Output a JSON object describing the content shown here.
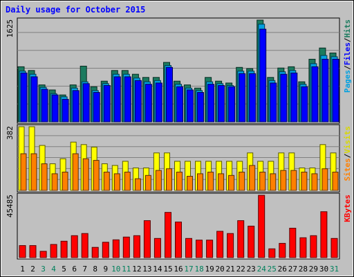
{
  "chart_data": {
    "type": "bar",
    "title": "Daily usage for October 2015",
    "categories": [
      "1",
      "2",
      "3",
      "4",
      "5",
      "6",
      "7",
      "8",
      "9",
      "10",
      "11",
      "12",
      "13",
      "14",
      "15",
      "16",
      "17",
      "18",
      "19",
      "20",
      "21",
      "22",
      "23",
      "24",
      "25",
      "26",
      "27",
      "28",
      "29",
      "30",
      "31"
    ],
    "weekend_days": [
      "3",
      "4",
      "10",
      "11",
      "17",
      "18",
      "24",
      "25",
      "31"
    ],
    "panels": [
      {
        "id": "traffic",
        "ymax_label": "1625",
        "ymax": 1625,
        "legend": [
          "Pages",
          "/",
          "Files",
          "/",
          "Hits"
        ],
        "series": [
          {
            "name": "Hits",
            "color": "#1b7b5f",
            "values": [
              880,
              820,
              590,
              510,
              430,
              590,
              890,
              560,
              650,
              820,
              820,
              760,
              710,
              710,
              950,
              650,
              590,
              540,
              710,
              650,
              620,
              870,
              850,
              1625,
              710,
              860,
              880,
              640,
              1000,
              1180,
              1100
            ]
          },
          {
            "name": "Files",
            "color": "#00a0e0",
            "values": [
              810,
              760,
              550,
              450,
              400,
              540,
              640,
              500,
              610,
              760,
              760,
              700,
              640,
              660,
              900,
              600,
              540,
              500,
              640,
              610,
              580,
              810,
              810,
              1560,
              660,
              800,
              820,
              600,
              930,
              1060,
              1040
            ]
          },
          {
            "name": "Pages",
            "color": "#0000ff",
            "values": [
              780,
              720,
              520,
              430,
              360,
              500,
              610,
              470,
              580,
              720,
              720,
              660,
              600,
              620,
              870,
              560,
              510,
              470,
              600,
              580,
              560,
              770,
              770,
              1480,
              620,
              760,
              780,
              560,
              880,
              1000,
              1000
            ]
          }
        ]
      },
      {
        "id": "visitors",
        "ymax_label": "382",
        "ymax": 382,
        "legend": [
          "Sites",
          "/",
          "Visits"
        ],
        "series": [
          {
            "name": "Visits",
            "color": "#ffff00",
            "values": [
              382,
              382,
              270,
              160,
              190,
              290,
              275,
              260,
              160,
              150,
              175,
              135,
              135,
              225,
              225,
              175,
              175,
              175,
              175,
              175,
              175,
              175,
              225,
              175,
              175,
              225,
              225,
              135,
              135,
              275,
              225
            ]
          },
          {
            "name": "Sites",
            "color": "#ff8000",
            "values": [
              220,
              220,
              160,
              100,
              110,
              220,
              190,
              180,
              110,
              100,
              110,
              70,
              90,
              120,
              130,
              110,
              85,
              100,
              110,
              100,
              90,
              110,
              150,
              110,
              100,
              120,
              120,
              110,
              100,
              130,
              110
            ]
          }
        ]
      },
      {
        "id": "volume",
        "ymax_label": "45485",
        "ymax": 45485,
        "legend": [
          "KBytes"
        ],
        "series": [
          {
            "name": "KBytes",
            "color": "#ff0000",
            "values": [
              8800,
              8800,
              4600,
              9600,
              12000,
              16000,
              17600,
              7500,
              11200,
              13000,
              15000,
              16000,
              27000,
              14000,
              33000,
              26000,
              14000,
              12800,
              12800,
              19200,
              17600,
              27000,
              23000,
              45485,
              6400,
              10400,
              21500,
              14500,
              16000,
              33500,
              14000
            ]
          }
        ]
      }
    ]
  },
  "colors": {
    "background": "#c0c0c0",
    "plot_bg": "#c0c0c0",
    "gridline": "#808080",
    "title": "#0000ff",
    "weekday_label": "#000000",
    "weekend_label": "#00805c"
  }
}
